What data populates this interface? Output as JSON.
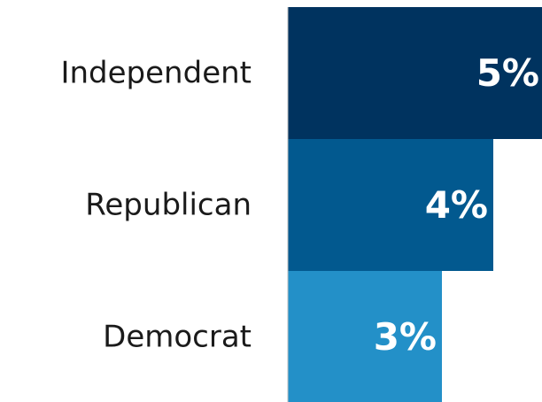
{
  "chart_data": {
    "type": "bar",
    "orientation": "horizontal",
    "categories": [
      "Independent",
      "Republican",
      "Democrat"
    ],
    "values": [
      5,
      4,
      3
    ],
    "data_labels": [
      "5%",
      "4%",
      "3%"
    ],
    "colors": [
      "#00335f",
      "#02598f",
      "#2390c8"
    ],
    "title": "",
    "xlabel": "",
    "ylabel": "",
    "grid": false,
    "legend": "none"
  }
}
